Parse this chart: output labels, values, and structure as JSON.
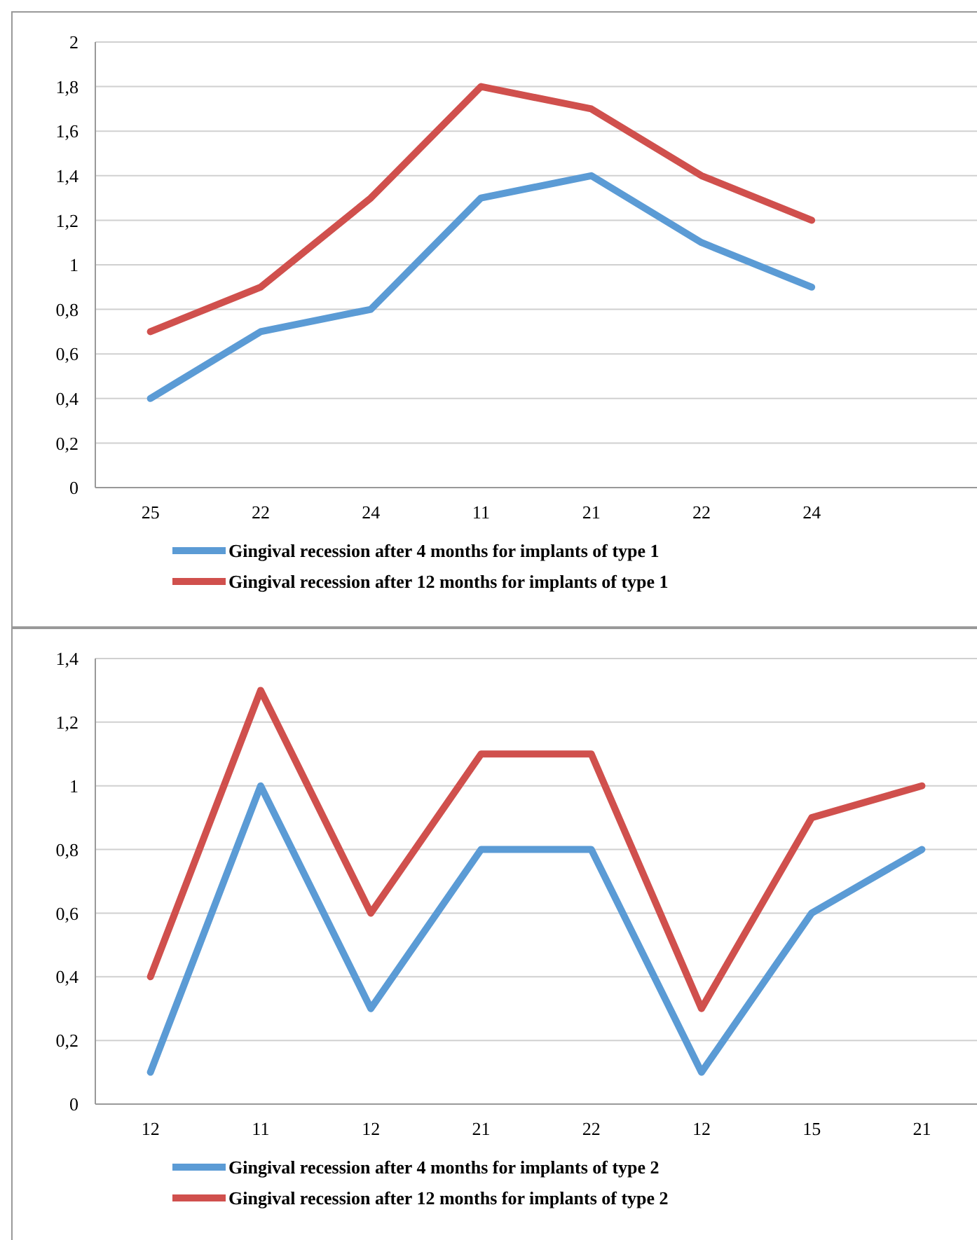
{
  "chart_data": [
    {
      "type": "line",
      "categories": [
        "25",
        "22",
        "24",
        "11",
        "21",
        "22",
        "24",
        null
      ],
      "ylim": [
        0,
        2
      ],
      "yticks": [
        0,
        {
          "value": 0.2,
          "label": "0,2"
        },
        {
          "value": 0.4,
          "label": "0,4"
        },
        {
          "value": 0.6,
          "label": "0,6"
        },
        {
          "value": 0.8,
          "label": "0,8"
        },
        1,
        {
          "value": 1.2,
          "label": "1,2"
        },
        {
          "value": 1.4,
          "label": "1,4"
        },
        {
          "value": 1.6,
          "label": "1,6"
        },
        {
          "value": 1.8,
          "label": "1,8"
        },
        2
      ],
      "grid": "y",
      "legend": "bottom",
      "marker": "none",
      "line_style": "solid",
      "series": [
        {
          "name": "Gingival recession after 4 months for implants of type 1",
          "color": "#5b9bd5",
          "values": [
            0.4,
            0.7,
            0.8,
            1.3,
            1.4,
            1.1,
            0.9,
            null
          ]
        },
        {
          "name": "Gingival recession after 12 months for implants of type 1",
          "color": "#d0504d",
          "values": [
            0.7,
            0.9,
            1.3,
            1.8,
            1.7,
            1.4,
            1.2,
            null
          ]
        }
      ]
    },
    {
      "type": "line",
      "categories": [
        "12",
        "11",
        "12",
        "21",
        "22",
        "12",
        "15",
        "21"
      ],
      "ylim": [
        0,
        1.4
      ],
      "yticks": [
        0,
        {
          "value": 0.2,
          "label": "0,2"
        },
        {
          "value": 0.4,
          "label": "0,4"
        },
        {
          "value": 0.6,
          "label": "0,6"
        },
        {
          "value": 0.8,
          "label": "0,8"
        },
        1,
        {
          "value": 1.2,
          "label": "1,2"
        },
        {
          "value": 1.4,
          "label": "1,4"
        }
      ],
      "grid": "y",
      "legend": "bottom",
      "marker": "none",
      "line_style": "solid",
      "series": [
        {
          "name": "Gingival recession after 4 months for implants of type 2",
          "color": "#5b9bd5",
          "values": [
            0.1,
            1.0,
            0.3,
            0.8,
            0.8,
            0.1,
            0.6,
            0.8
          ]
        },
        {
          "name": "Gingival recession after 12 months for implants of type 2",
          "color": "#d0504d",
          "values": [
            0.4,
            1.3,
            0.6,
            1.1,
            1.1,
            0.3,
            0.9,
            1.0
          ]
        }
      ]
    }
  ]
}
